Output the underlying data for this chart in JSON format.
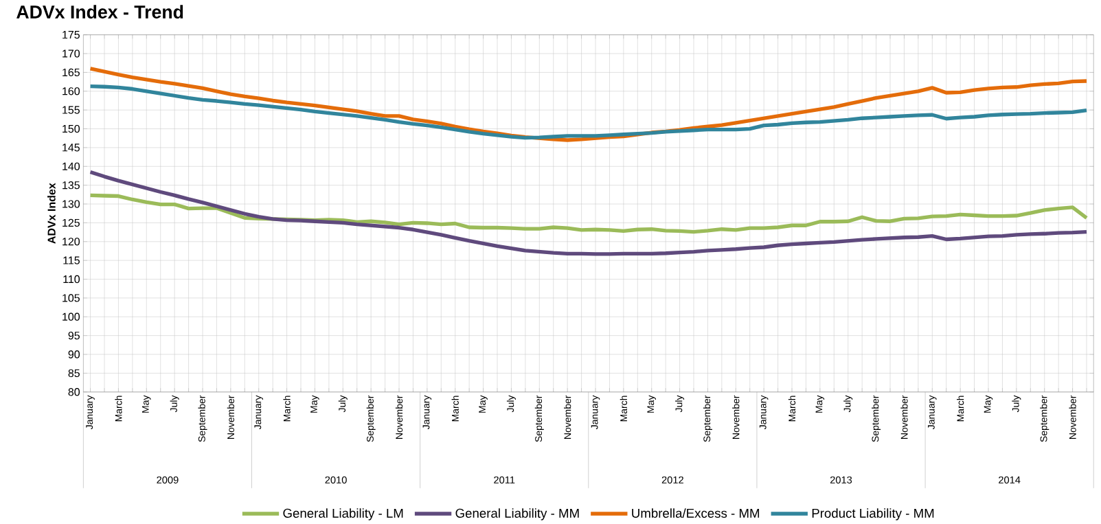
{
  "chart_data": {
    "type": "line",
    "title": "ADVx Index - Trend",
    "ylabel": "ADVx Index",
    "categories": [
      "January",
      null,
      "March",
      null,
      "May",
      null,
      "July",
      null,
      "September",
      null,
      "November",
      null,
      "January",
      null,
      "March",
      null,
      "May",
      null,
      "July",
      null,
      "September",
      null,
      "November",
      null,
      "January",
      null,
      "March",
      null,
      "May",
      null,
      "July",
      null,
      "September",
      null,
      "November",
      null,
      "January",
      null,
      "March",
      null,
      "May",
      null,
      "July",
      null,
      "September",
      null,
      "November",
      null,
      "January",
      null,
      "March",
      null,
      "May",
      null,
      "July",
      null,
      "September",
      null,
      "November",
      null,
      "January",
      null,
      "March",
      null,
      "May",
      null,
      "July",
      null,
      "September",
      null,
      "November",
      null
    ],
    "annotations": [
      "2009",
      "2010",
      "2011",
      "2012",
      "2013",
      "2014"
    ],
    "series": [
      {
        "name": "General Liability - LM",
        "color": "#9bbb59",
        "values": [
          132.3,
          132.2,
          132.1,
          131.2,
          130.5,
          129.9,
          129.9,
          128.8,
          128.9,
          128.9,
          127.6,
          126.3,
          126.1,
          126.0,
          125.9,
          125.8,
          125.7,
          125.8,
          125.7,
          125.2,
          125.4,
          125.1,
          124.6,
          125.0,
          124.9,
          124.6,
          124.8,
          123.8,
          123.7,
          123.7,
          123.6,
          123.4,
          123.4,
          123.8,
          123.6,
          123.1,
          123.2,
          123.1,
          122.8,
          123.2,
          123.3,
          122.9,
          122.8,
          122.6,
          122.9,
          123.3,
          123.1,
          123.6,
          123.6,
          123.8,
          124.3,
          124.3,
          125.3,
          125.3,
          125.4,
          126.5,
          125.5,
          125.4,
          126.1,
          126.2,
          126.7,
          126.8,
          127.2,
          127.0,
          126.8,
          126.8,
          126.9,
          127.6,
          128.4,
          128.8,
          129.1,
          126.3
        ]
      },
      {
        "name": "General Liability - MM",
        "color": "#5f4a7d",
        "values": [
          138.5,
          137.3,
          136.2,
          135.2,
          134.2,
          133.2,
          132.3,
          131.3,
          130.4,
          129.4,
          128.4,
          127.4,
          126.6,
          126.0,
          125.7,
          125.6,
          125.4,
          125.2,
          125.0,
          124.6,
          124.3,
          124.0,
          123.7,
          123.2,
          122.5,
          121.8,
          121.0,
          120.2,
          119.5,
          118.8,
          118.2,
          117.6,
          117.3,
          117.0,
          116.8,
          116.8,
          116.7,
          116.7,
          116.8,
          116.8,
          116.8,
          116.9,
          117.1,
          117.3,
          117.6,
          117.8,
          118.0,
          118.3,
          118.5,
          119.0,
          119.3,
          119.5,
          119.7,
          119.9,
          120.2,
          120.5,
          120.7,
          120.9,
          121.1,
          121.2,
          121.5,
          120.6,
          120.8,
          121.1,
          121.4,
          121.5,
          121.8,
          122.0,
          122.1,
          122.3,
          122.4,
          122.6
        ]
      },
      {
        "name": "Umbrella/Excess - MM",
        "color": "#e46c0a",
        "values": [
          166.0,
          165.2,
          164.4,
          163.7,
          163.1,
          162.5,
          162.0,
          161.4,
          160.8,
          160.0,
          159.2,
          158.6,
          158.1,
          157.5,
          157.0,
          156.6,
          156.2,
          155.7,
          155.2,
          154.7,
          154.0,
          153.4,
          153.4,
          152.5,
          152.0,
          151.4,
          150.6,
          149.9,
          149.3,
          148.8,
          148.2,
          147.8,
          147.5,
          147.2,
          147.0,
          147.2,
          147.5,
          147.8,
          148.0,
          148.5,
          149.0,
          149.3,
          149.7,
          150.2,
          150.6,
          151.0,
          151.6,
          152.2,
          152.8,
          153.4,
          154.0,
          154.6,
          155.2,
          155.8,
          156.6,
          157.4,
          158.2,
          158.8,
          159.4,
          160.0,
          160.9,
          159.6,
          159.7,
          160.3,
          160.7,
          161.0,
          161.1,
          161.6,
          161.9,
          162.1,
          162.6,
          162.7
        ]
      },
      {
        "name": "Product Liability - MM",
        "color": "#31859c",
        "values": [
          161.3,
          161.2,
          161.0,
          160.6,
          160.0,
          159.4,
          158.8,
          158.2,
          157.7,
          157.4,
          157.0,
          156.6,
          156.3,
          155.9,
          155.5,
          155.1,
          154.6,
          154.2,
          153.8,
          153.4,
          152.9,
          152.4,
          151.8,
          151.3,
          150.9,
          150.4,
          149.8,
          149.2,
          148.7,
          148.3,
          147.9,
          147.6,
          147.7,
          147.9,
          148.1,
          148.1,
          148.1,
          148.3,
          148.5,
          148.7,
          148.9,
          149.2,
          149.4,
          149.6,
          149.8,
          149.8,
          149.8,
          150.0,
          150.9,
          151.1,
          151.5,
          151.7,
          151.8,
          152.1,
          152.4,
          152.8,
          153.0,
          153.2,
          153.4,
          153.6,
          153.7,
          152.7,
          153.0,
          153.2,
          153.6,
          153.8,
          153.9,
          154.0,
          154.2,
          154.3,
          154.4,
          154.9
        ]
      }
    ],
    "ylim": [
      80,
      175
    ],
    "yticks": [
      80,
      85,
      90,
      95,
      100,
      105,
      110,
      115,
      120,
      125,
      130,
      135,
      140,
      145,
      150,
      155,
      160,
      165,
      170,
      175
    ],
    "grid": true,
    "legend": "bottom",
    "line_style": "solid",
    "marker": "none"
  }
}
